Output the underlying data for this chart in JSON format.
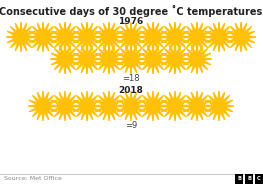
{
  "title": "Consecutive days of 30 degree ˚C temperatures",
  "year1": "1976",
  "year2": "2018",
  "count1": 18,
  "count2": 9,
  "label1": "=18",
  "label2": "=9",
  "row1_count": 11,
  "row2_count": 7,
  "sun_color": "#FFC107",
  "sun_ray_color": "#FFC107",
  "bg_color": "#ffffff",
  "source_text": "Source: Met Office",
  "title_fontsize": 7.0,
  "year_fontsize": 6.5,
  "label_fontsize": 6.0,
  "source_fontsize": 4.5
}
